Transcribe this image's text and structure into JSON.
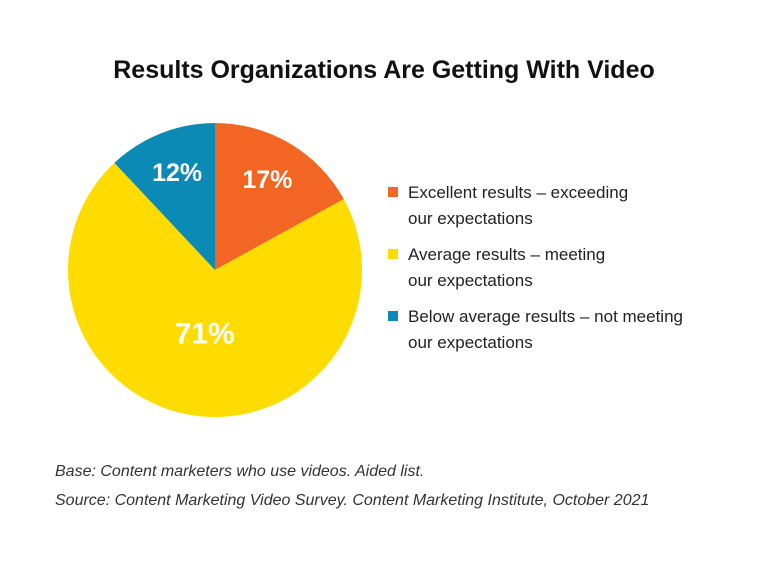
{
  "chart_data": {
    "type": "pie",
    "title": "Results Organizations Are Getting With Video",
    "categories": [
      "Excellent results – exceeding\nour expectations",
      "Average results – meeting\nour expectations",
      "Below average results – not meeting\nour expectations"
    ],
    "values": [
      17,
      71,
      12
    ],
    "value_labels": [
      "17%",
      "71%",
      "12%"
    ],
    "colors": [
      "#f26522",
      "#ffdc00",
      "#0b8ab5"
    ],
    "notes": [
      "Base: Content marketers who use videos. Aided list.",
      "Source: Content Marketing Video Survey. Content Marketing Institute, October 2021"
    ]
  }
}
